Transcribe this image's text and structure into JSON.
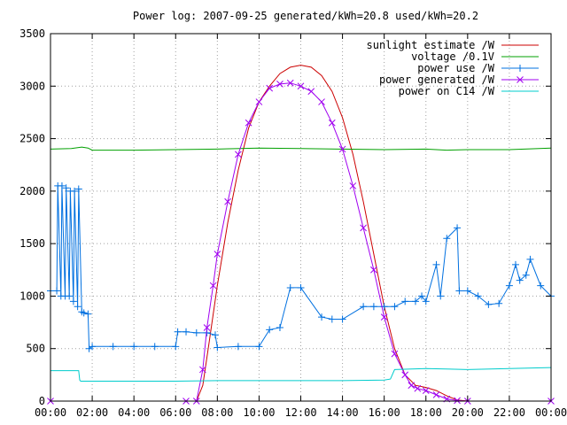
{
  "chart_data": {
    "type": "line",
    "title": "Power log: 2007-09-25 generated/kWh=20.8 used/kWh=20.2",
    "xlabel": "",
    "ylabel": "",
    "x_unit": "hours",
    "xlim": [
      0,
      24
    ],
    "ylim": [
      0,
      3500
    ],
    "x_ticks": [
      {
        "value": 0,
        "label": "00:00"
      },
      {
        "value": 2,
        "label": "02:00"
      },
      {
        "value": 4,
        "label": "04:00"
      },
      {
        "value": 6,
        "label": "06:00"
      },
      {
        "value": 8,
        "label": "08:00"
      },
      {
        "value": 10,
        "label": "10:00"
      },
      {
        "value": 12,
        "label": "12:00"
      },
      {
        "value": 14,
        "label": "14:00"
      },
      {
        "value": 16,
        "label": "16:00"
      },
      {
        "value": 18,
        "label": "18:00"
      },
      {
        "value": 20,
        "label": "20:00"
      },
      {
        "value": 22,
        "label": "22:00"
      },
      {
        "value": 24,
        "label": "00:00"
      }
    ],
    "y_ticks": [
      {
        "value": 0,
        "label": "0"
      },
      {
        "value": 500,
        "label": "500"
      },
      {
        "value": 1000,
        "label": "1000"
      },
      {
        "value": 1500,
        "label": "1500"
      },
      {
        "value": 2000,
        "label": "2000"
      },
      {
        "value": 2500,
        "label": "2500"
      },
      {
        "value": 3000,
        "label": "3000"
      },
      {
        "value": 3500,
        "label": "3500"
      }
    ],
    "grid": true,
    "legend_position": "top-right",
    "series": [
      {
        "name": "sunlight estimate /W",
        "color": "#cc0000",
        "style": "line",
        "x": [
          7.0,
          7.3,
          7.6,
          8.0,
          8.5,
          9.0,
          9.5,
          10.0,
          10.5,
          11.0,
          11.5,
          12.0,
          12.5,
          13.0,
          13.5,
          14.0,
          14.5,
          15.0,
          15.5,
          16.0,
          16.5,
          17.0,
          17.5,
          18.0,
          18.5,
          19.0,
          19.5,
          20.0,
          24.0
        ],
        "y": [
          0,
          150,
          550,
          1100,
          1700,
          2200,
          2600,
          2850,
          3000,
          3120,
          3180,
          3200,
          3180,
          3100,
          2950,
          2700,
          2350,
          1900,
          1400,
          900,
          500,
          250,
          150,
          130,
          100,
          50,
          10,
          0,
          0
        ]
      },
      {
        "name": "voltage /0.1V",
        "color": "#00a000",
        "style": "line",
        "x": [
          0,
          1,
          1.5,
          1.8,
          2,
          4,
          6,
          8,
          10,
          12,
          14,
          16,
          18,
          19,
          20,
          22,
          24
        ],
        "y": [
          2400,
          2405,
          2420,
          2410,
          2390,
          2390,
          2395,
          2400,
          2410,
          2405,
          2400,
          2395,
          2400,
          2390,
          2395,
          2395,
          2410
        ]
      },
      {
        "name": "power use /W",
        "color": "#0070e0",
        "style": "linepoints-plus",
        "x": [
          0,
          0.3,
          0.35,
          0.5,
          0.55,
          0.7,
          0.75,
          0.9,
          0.95,
          1.1,
          1.15,
          1.3,
          1.35,
          1.5,
          1.6,
          1.8,
          1.85,
          2,
          3,
          4,
          5,
          6,
          6.1,
          6.5,
          7,
          7.5,
          7.9,
          8.0,
          9,
          10,
          10.5,
          11,
          11.5,
          12,
          13,
          13.5,
          14,
          15,
          15.5,
          16,
          16.5,
          17,
          17.5,
          17.8,
          18,
          18.5,
          18.7,
          19,
          19.5,
          19.6,
          20,
          20.5,
          21,
          21.5,
          22,
          22.3,
          22.5,
          22.8,
          23,
          23.5,
          24
        ],
        "y": [
          1050,
          1050,
          2050,
          1000,
          2050,
          1000,
          2030,
          1000,
          2000,
          950,
          2000,
          900,
          2020,
          850,
          840,
          830,
          500,
          520,
          520,
          520,
          520,
          520,
          660,
          660,
          650,
          650,
          630,
          510,
          520,
          520,
          680,
          700,
          1080,
          1080,
          800,
          780,
          780,
          900,
          900,
          900,
          900,
          950,
          950,
          1000,
          950,
          1300,
          1000,
          1550,
          1650,
          1050,
          1050,
          1000,
          920,
          930,
          1100,
          1300,
          1150,
          1200,
          1350,
          1100,
          1000
        ]
      },
      {
        "name": "power generated /W",
        "color": "#a000f0",
        "style": "linepoints-x",
        "x": [
          0,
          6.5,
          7.0,
          7.3,
          7.5,
          7.8,
          8.0,
          8.5,
          9.0,
          9.5,
          10.0,
          10.5,
          11.0,
          11.5,
          12.0,
          12.5,
          13.0,
          13.5,
          14.0,
          14.5,
          15.0,
          15.5,
          16.0,
          16.5,
          17.0,
          17.3,
          17.6,
          18.0,
          18.5,
          19.0,
          19.5,
          20.0,
          24.0
        ],
        "y": [
          0,
          0,
          0,
          300,
          700,
          1100,
          1400,
          1900,
          2350,
          2650,
          2850,
          2980,
          3020,
          3030,
          3000,
          2950,
          2850,
          2650,
          2400,
          2050,
          1650,
          1250,
          800,
          450,
          250,
          150,
          120,
          100,
          60,
          20,
          5,
          0,
          0
        ]
      },
      {
        "name": "power on C14 /W",
        "color": "#00cccc",
        "style": "line",
        "x": [
          0,
          1.3,
          1.35,
          1.4,
          1.45,
          2,
          4,
          6,
          8,
          10,
          12,
          14,
          16,
          16.3,
          16.5,
          18,
          20,
          22,
          24
        ],
        "y": [
          290,
          290,
          290,
          200,
          190,
          190,
          190,
          190,
          195,
          195,
          195,
          195,
          200,
          210,
          300,
          310,
          300,
          310,
          320
        ]
      }
    ]
  }
}
